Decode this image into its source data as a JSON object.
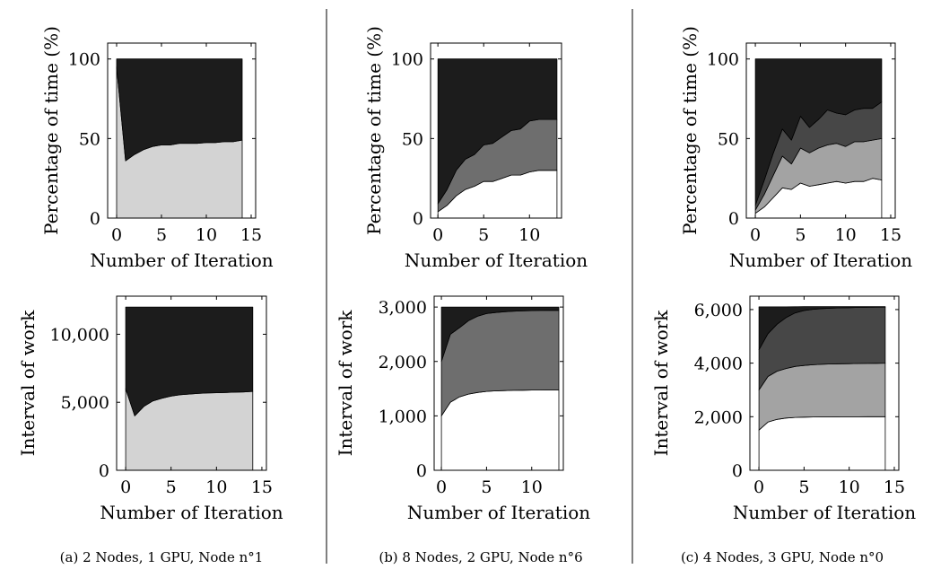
{
  "captions": [
    "(a) 2 Nodes, 1 GPU, Node n°1",
    "(b) 8 Nodes, 2 GPU, Node n°6",
    "(c) 4 Nodes, 3 GPU, Node n°0"
  ],
  "chart_data": [
    {
      "type": "area",
      "stacked": true,
      "panel": "a",
      "row": "top",
      "xlabel": "Number of Iteration",
      "ylabel": "Percentage of time (%)",
      "xlim": [
        -1,
        15.5
      ],
      "ylim": [
        0,
        110
      ],
      "xticks": [
        0,
        5,
        10,
        15
      ],
      "yticks": [
        0,
        50,
        100
      ],
      "x": [
        0,
        1,
        2,
        3,
        4,
        5,
        6,
        7,
        8,
        9,
        10,
        11,
        12,
        13,
        14
      ],
      "series": [
        {
          "color": "#d3d3d3",
          "values": [
            95,
            36,
            40,
            43,
            45,
            46,
            46,
            47,
            47,
            47,
            47.5,
            47.5,
            48,
            48,
            49
          ]
        },
        {
          "color": "#1c1c1c",
          "values": [
            5,
            64,
            60,
            57,
            55,
            54,
            54,
            53,
            53,
            53,
            52.5,
            52.5,
            52,
            52,
            51
          ]
        }
      ],
      "grid": false
    },
    {
      "type": "area",
      "stacked": true,
      "panel": "b",
      "row": "top",
      "xlabel": "Number of Iteration",
      "ylabel": "Percentage of time (%)",
      "xlim": [
        -0.8,
        13.5
      ],
      "ylim": [
        0,
        110
      ],
      "xticks": [
        0,
        5,
        10
      ],
      "yticks": [
        0,
        50,
        100
      ],
      "x": [
        0,
        1,
        2,
        3,
        4,
        5,
        6,
        7,
        8,
        9,
        10,
        11,
        12,
        13
      ],
      "series": [
        {
          "color": "#ffffff",
          "values": [
            4,
            8,
            14,
            18,
            20,
            23,
            23,
            25,
            27,
            27,
            29,
            30,
            30,
            30
          ]
        },
        {
          "color": "#6e6e6e",
          "values": [
            5,
            10,
            16,
            19,
            20,
            23,
            24,
            26,
            28,
            29,
            32,
            32,
            32,
            32
          ]
        },
        {
          "color": "#1c1c1c",
          "values": [
            91,
            82,
            70,
            63,
            60,
            54,
            53,
            49,
            45,
            44,
            39,
            38,
            38,
            38
          ]
        }
      ],
      "grid": false
    },
    {
      "type": "area",
      "stacked": true,
      "panel": "c",
      "row": "top",
      "xlabel": "Number of Iteration",
      "ylabel": "Percentage of time (%)",
      "xlim": [
        -1,
        15.5
      ],
      "ylim": [
        0,
        110
      ],
      "xticks": [
        0,
        5,
        10,
        15
      ],
      "yticks": [
        0,
        50,
        100
      ],
      "x": [
        0,
        1,
        2,
        3,
        4,
        5,
        6,
        7,
        8,
        9,
        10,
        11,
        12,
        13,
        14
      ],
      "series": [
        {
          "color": "#ffffff",
          "values": [
            3,
            7,
            13,
            19,
            18,
            22,
            20,
            21,
            22,
            23,
            22,
            23,
            23,
            25,
            24
          ]
        },
        {
          "color": "#a3a3a3",
          "values": [
            2,
            8,
            14,
            20,
            16,
            22,
            21,
            23,
            24,
            24,
            23,
            25,
            25,
            24,
            26
          ]
        },
        {
          "color": "#474747",
          "values": [
            3,
            9,
            14,
            17,
            15,
            20,
            16,
            18,
            22,
            19,
            20,
            20,
            21,
            20,
            23
          ]
        },
        {
          "color": "#1c1c1c",
          "values": [
            92,
            76,
            59,
            44,
            51,
            36,
            43,
            38,
            32,
            34,
            35,
            32,
            31,
            31,
            27
          ]
        }
      ],
      "grid": false
    },
    {
      "type": "area",
      "stacked": true,
      "panel": "a",
      "row": "bottom",
      "xlabel": "Number of Iteration",
      "ylabel": "Interval of work",
      "xlim": [
        -1,
        15.5
      ],
      "ylim": [
        0,
        12800
      ],
      "xticks": [
        0,
        5,
        10,
        15
      ],
      "yticks": [
        0,
        5000,
        10000
      ],
      "yticklabels": [
        "0",
        "5,000",
        "10,000"
      ],
      "x": [
        0,
        1,
        2,
        3,
        4,
        5,
        6,
        7,
        8,
        9,
        10,
        11,
        12,
        13,
        14
      ],
      "series": [
        {
          "color": "#d3d3d3",
          "values": [
            6000,
            4000,
            4700,
            5100,
            5300,
            5450,
            5550,
            5600,
            5650,
            5680,
            5700,
            5720,
            5740,
            5760,
            5800
          ]
        },
        {
          "color": "#1c1c1c",
          "values": [
            6000,
            8000,
            7300,
            6900,
            6700,
            6550,
            6450,
            6400,
            6350,
            6320,
            6300,
            6280,
            6260,
            6240,
            6200
          ]
        }
      ],
      "grid": false
    },
    {
      "type": "area",
      "stacked": true,
      "panel": "b",
      "row": "bottom",
      "xlabel": "Number of Iteration",
      "ylabel": "Interval of work",
      "xlim": [
        -0.8,
        13.5
      ],
      "ylim": [
        0,
        3200
      ],
      "xticks": [
        0,
        5,
        10
      ],
      "yticks": [
        0,
        1000,
        2000,
        3000
      ],
      "yticklabels": [
        "0",
        "1,000",
        "2,000",
        "3,000"
      ],
      "x": [
        0,
        1,
        2,
        3,
        4,
        5,
        6,
        7,
        8,
        9,
        10,
        11,
        12,
        13
      ],
      "series": [
        {
          "color": "#ffffff",
          "values": [
            1000,
            1250,
            1350,
            1400,
            1430,
            1450,
            1460,
            1465,
            1470,
            1472,
            1474,
            1475,
            1476,
            1476
          ]
        },
        {
          "color": "#6e6e6e",
          "values": [
            1000,
            1250,
            1270,
            1350,
            1400,
            1430,
            1440,
            1450,
            1455,
            1458,
            1460,
            1462,
            1463,
            1464
          ]
        },
        {
          "color": "#1c1c1c",
          "values": [
            1000,
            500,
            380,
            250,
            170,
            120,
            100,
            85,
            75,
            70,
            66,
            63,
            61,
            60
          ]
        }
      ],
      "grid": false
    },
    {
      "type": "area",
      "stacked": true,
      "panel": "c",
      "row": "bottom",
      "xlabel": "Number of Iteration",
      "ylabel": "Interval of work",
      "xlim": [
        -1,
        15.5
      ],
      "ylim": [
        0,
        6500
      ],
      "xticks": [
        0,
        5,
        10,
        15
      ],
      "yticks": [
        0,
        2000,
        4000,
        6000
      ],
      "yticklabels": [
        "0",
        "2,000",
        "4,000",
        "6,000"
      ],
      "x": [
        0,
        1,
        2,
        3,
        4,
        5,
        6,
        7,
        8,
        9,
        10,
        11,
        12,
        13,
        14
      ],
      "series": [
        {
          "color": "#ffffff",
          "values": [
            1500,
            1800,
            1900,
            1950,
            1975,
            1985,
            1990,
            1993,
            1995,
            1996,
            1997,
            1998,
            1999,
            2000,
            2000
          ]
        },
        {
          "color": "#a3a3a3",
          "values": [
            1500,
            1700,
            1800,
            1850,
            1900,
            1930,
            1950,
            1965,
            1975,
            1980,
            1985,
            1990,
            1993,
            1995,
            2000
          ]
        },
        {
          "color": "#474747",
          "values": [
            1500,
            1600,
            1750,
            1900,
            2000,
            2050,
            2070,
            2080,
            2085,
            2088,
            2090,
            2092,
            2094,
            2095,
            2096
          ]
        },
        {
          "color": "#1c1c1c",
          "values": [
            1600,
            1000,
            650,
            400,
            230,
            145,
            100,
            72,
            55,
            46,
            38,
            30,
            24,
            20,
            14
          ]
        }
      ],
      "grid": false
    }
  ]
}
